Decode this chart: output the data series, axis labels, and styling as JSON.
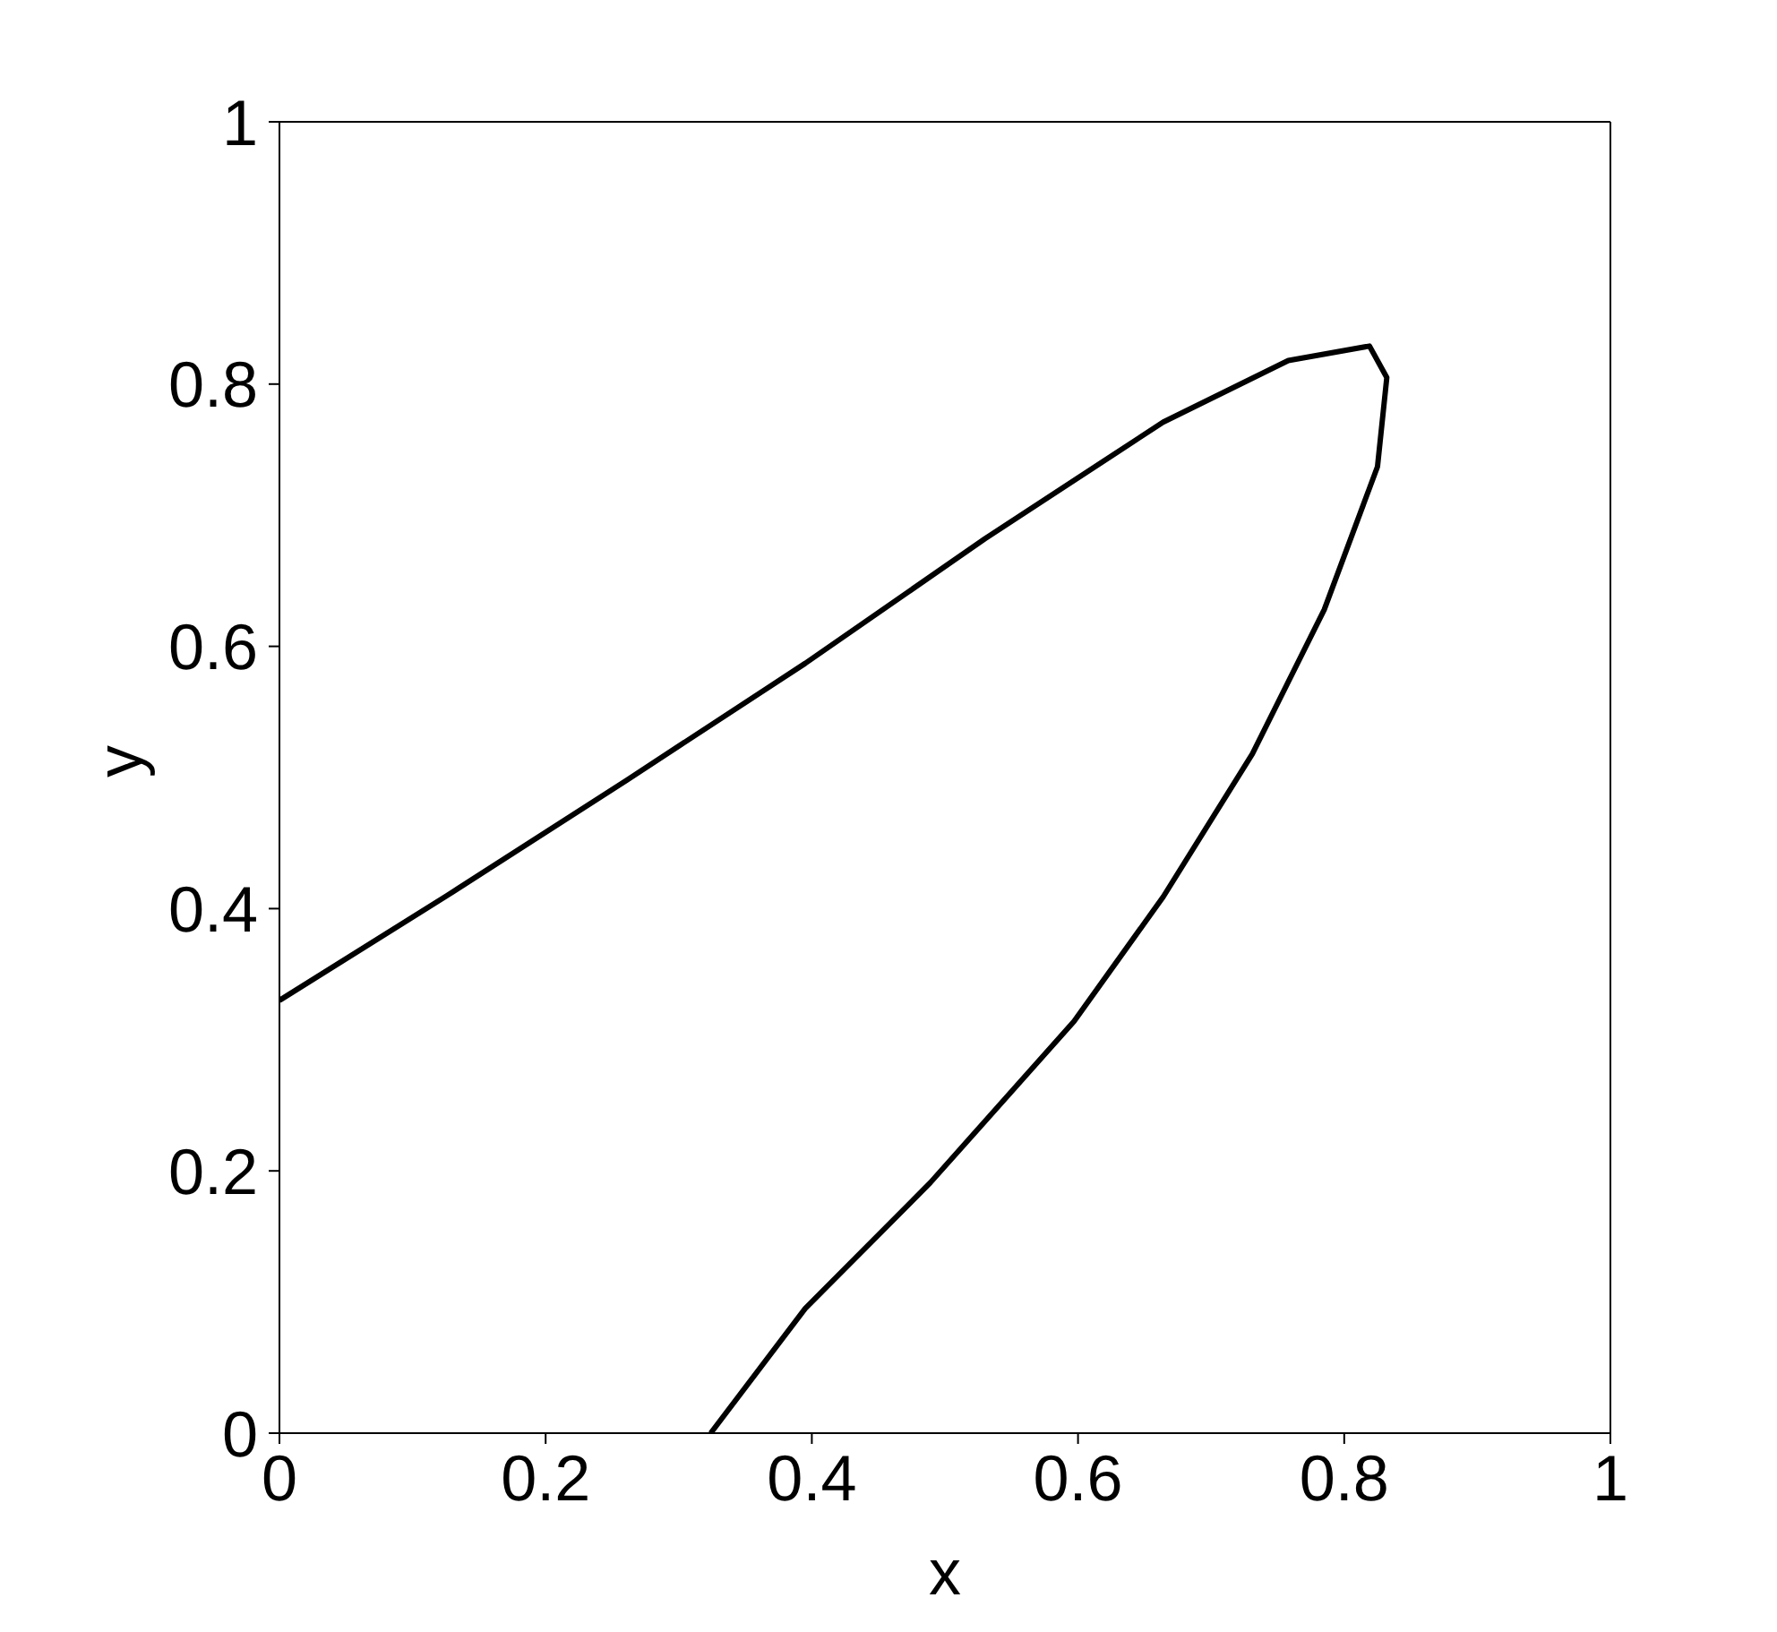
{
  "chart_data": {
    "type": "line",
    "xlabel": "x",
    "ylabel": "y",
    "series": [
      {
        "color": "#000000",
        "x": [
          0,
          0.126,
          0.261,
          0.395,
          0.53,
          0.664,
          0.758,
          0.819,
          0.832,
          0.825,
          0.785,
          0.731,
          0.664,
          0.597,
          0.489,
          0.395,
          0.324
        ],
        "values": [
          0.33,
          0.41,
          0.498,
          0.587,
          0.682,
          0.771,
          0.818,
          0.829,
          0.805,
          0.737,
          0.628,
          0.518,
          0.409,
          0.314,
          0.191,
          0.095,
          0
        ]
      }
    ],
    "xlim": [
      0,
      1
    ],
    "xticks": [
      0,
      0.2,
      0.4,
      0.6,
      0.8,
      1
    ],
    "ylim": [
      0,
      1
    ],
    "yticks": [
      0,
      0.2,
      0.4,
      0.6,
      0.8,
      1
    ],
    "legend": false,
    "marker": "none",
    "line_style": "solid"
  }
}
